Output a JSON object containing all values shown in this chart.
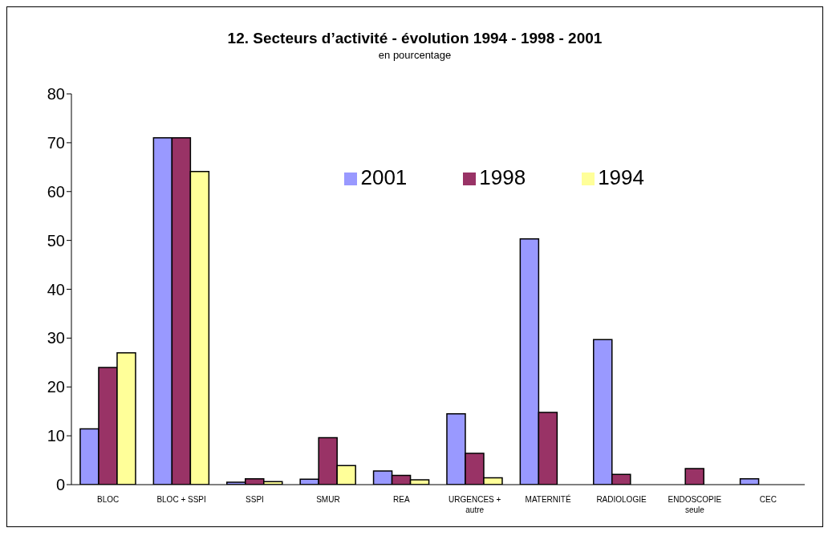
{
  "chart_data": {
    "type": "bar",
    "title": "12. Secteurs d’activité - évolution 1994 - 1998 - 2001",
    "subtitle": "en pourcentage",
    "categories": [
      "BLOC",
      "BLOC + SSPI",
      "SSPI",
      "SMUR",
      "REA",
      "URGENCES + autre",
      "MATERNITÉ",
      "RADIOLOGIE",
      "ENDOSCOPIE seule",
      "CEC"
    ],
    "series": [
      {
        "name": "2001",
        "color": "#9999ff",
        "values": [
          11.4,
          71,
          0.5,
          1.1,
          2.8,
          14.5,
          50.3,
          29.7,
          null,
          1.2
        ]
      },
      {
        "name": "1998",
        "color": "#993366",
        "values": [
          24,
          71,
          1.2,
          9.6,
          1.9,
          6.4,
          14.8,
          2.1,
          3.3,
          null
        ]
      },
      {
        "name": "1994",
        "color": "#ffff99",
        "values": [
          27,
          64.1,
          0.6,
          3.9,
          1,
          1.4,
          null,
          null,
          null,
          null
        ]
      }
    ],
    "ylim": [
      0,
      80
    ],
    "yticks": [
      0,
      10,
      20,
      30,
      40,
      50,
      60,
      70,
      80
    ],
    "grid": false,
    "legend": "top right"
  }
}
